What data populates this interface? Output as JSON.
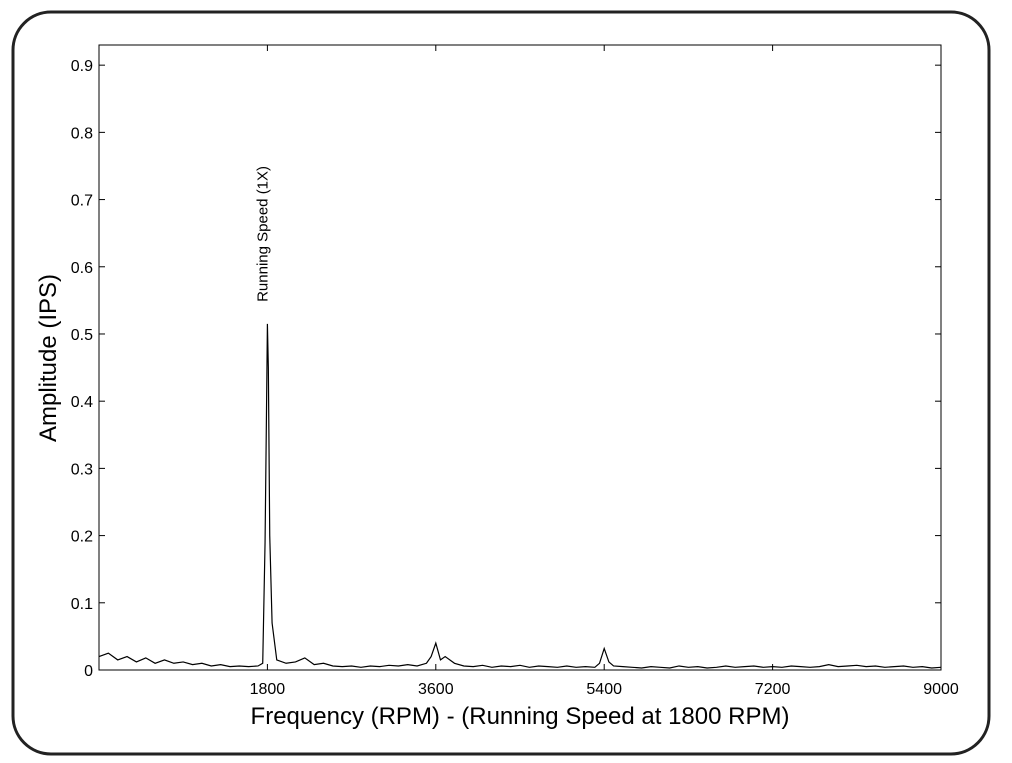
{
  "chart_data": {
    "type": "line",
    "xlabel": "Frequency (RPM) - (Running Speed at 1800 RPM)",
    "ylabel": "Amplitude (IPS)",
    "annotation": "Running Speed (1X)",
    "color": "#000000",
    "x": [
      0,
      100,
      200,
      300,
      400,
      500,
      600,
      700,
      800,
      900,
      1000,
      1100,
      1200,
      1300,
      1400,
      1500,
      1600,
      1700,
      1750,
      1775,
      1790,
      1800,
      1810,
      1825,
      1850,
      1900,
      2000,
      2100,
      2200,
      2300,
      2400,
      2500,
      2600,
      2700,
      2800,
      2900,
      3000,
      3100,
      3200,
      3300,
      3400,
      3500,
      3550,
      3600,
      3650,
      3700,
      3800,
      3900,
      4000,
      4100,
      4200,
      4300,
      4400,
      4500,
      4600,
      4700,
      4800,
      4900,
      5000,
      5100,
      5200,
      5300,
      5350,
      5400,
      5450,
      5500,
      5600,
      5700,
      5800,
      5900,
      6000,
      6100,
      6200,
      6300,
      6400,
      6500,
      6600,
      6700,
      6800,
      6900,
      7000,
      7100,
      7200,
      7300,
      7400,
      7500,
      7600,
      7700,
      7800,
      7900,
      8000,
      8100,
      8200,
      8300,
      8400,
      8500,
      8600,
      8700,
      8800,
      8900,
      9000
    ],
    "values": [
      0.02,
      0.025,
      0.015,
      0.02,
      0.012,
      0.018,
      0.01,
      0.015,
      0.01,
      0.012,
      0.008,
      0.01,
      0.006,
      0.008,
      0.005,
      0.006,
      0.005,
      0.006,
      0.01,
      0.19,
      0.38,
      0.515,
      0.45,
      0.2,
      0.07,
      0.015,
      0.01,
      0.012,
      0.018,
      0.008,
      0.01,
      0.006,
      0.005,
      0.006,
      0.004,
      0.006,
      0.005,
      0.007,
      0.006,
      0.008,
      0.006,
      0.01,
      0.02,
      0.04,
      0.015,
      0.02,
      0.01,
      0.006,
      0.005,
      0.007,
      0.004,
      0.006,
      0.005,
      0.007,
      0.004,
      0.006,
      0.005,
      0.004,
      0.006,
      0.004,
      0.005,
      0.004,
      0.01,
      0.032,
      0.012,
      0.006,
      0.005,
      0.004,
      0.003,
      0.005,
      0.004,
      0.003,
      0.006,
      0.004,
      0.005,
      0.003,
      0.004,
      0.006,
      0.004,
      0.005,
      0.006,
      0.004,
      0.005,
      0.004,
      0.006,
      0.005,
      0.004,
      0.005,
      0.008,
      0.005,
      0.006,
      0.007,
      0.005,
      0.006,
      0.004,
      0.005,
      0.006,
      0.004,
      0.005,
      0.003,
      0.004
    ],
    "xlim": [
      0,
      9000
    ],
    "xticks": [
      1800,
      3600,
      5400,
      7200,
      9000
    ],
    "ylim": [
      0,
      0.93
    ],
    "yticks": [
      0,
      0.1,
      0.2,
      0.3,
      0.4,
      0.5,
      0.6,
      0.7,
      0.8,
      0.9
    ]
  }
}
